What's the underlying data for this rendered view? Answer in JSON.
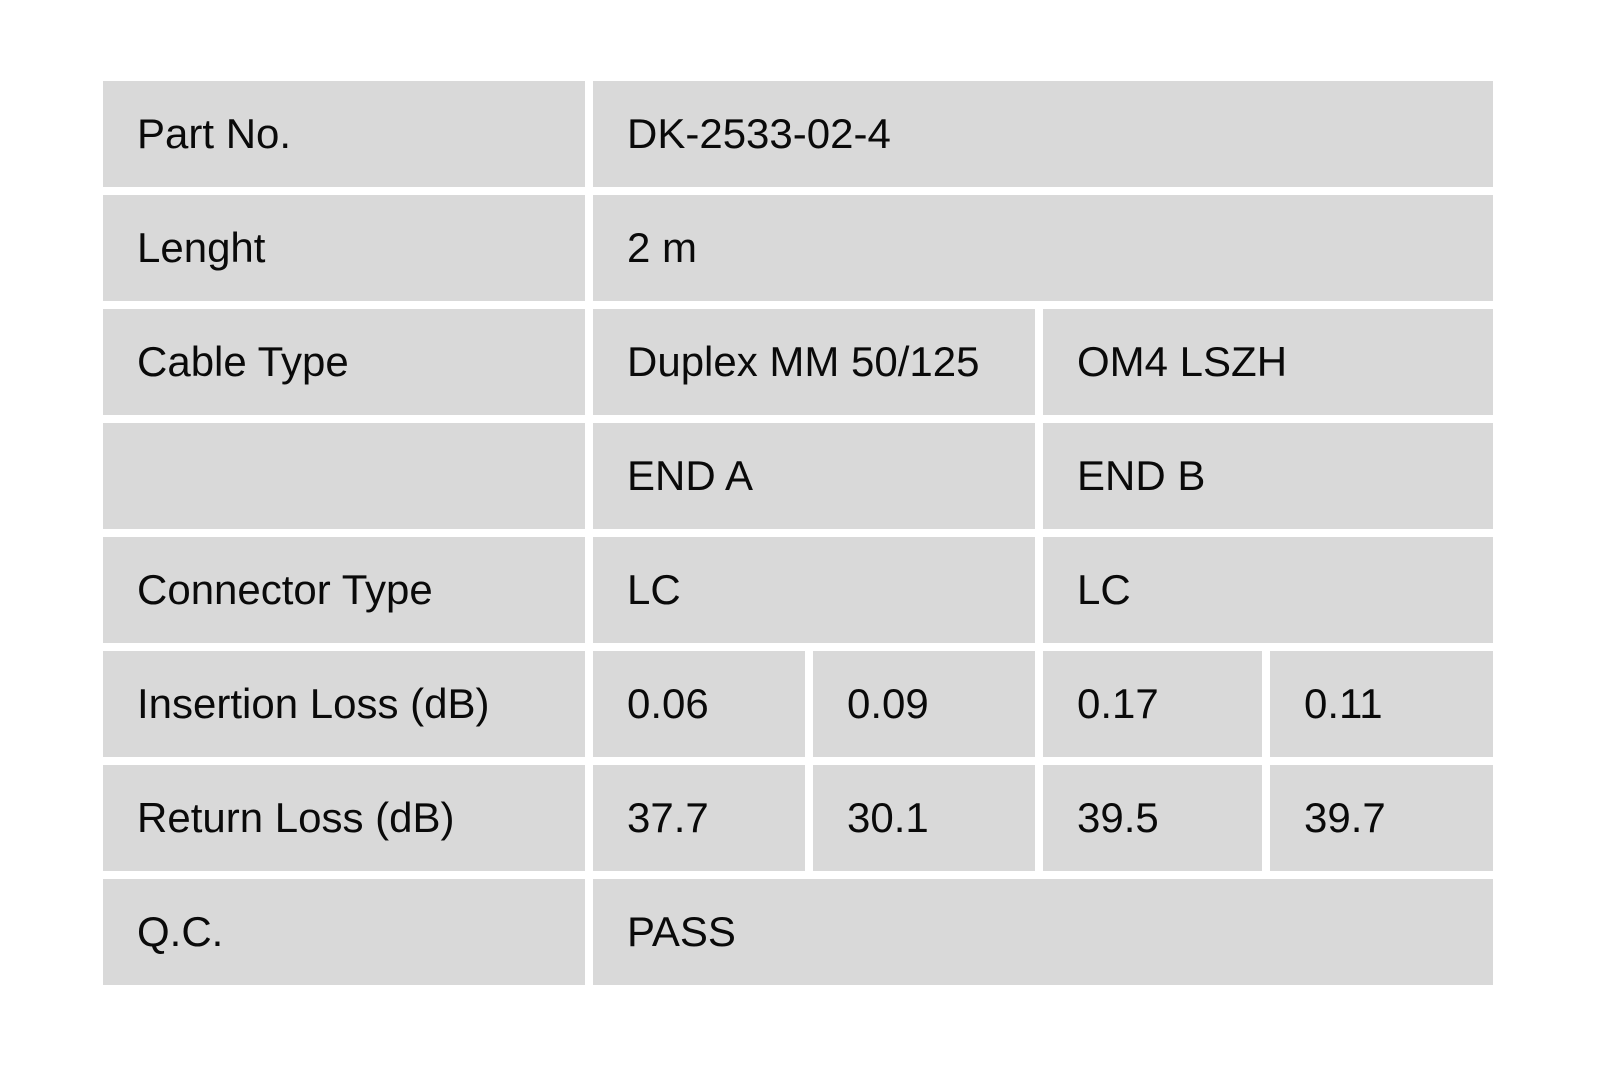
{
  "colors": {
    "cell_bg": "#d9d9d9",
    "page_bg": "#ffffff",
    "text": "#000000"
  },
  "table": {
    "rows": [
      {
        "label": "Part No.",
        "value": "DK-2533-02-4"
      },
      {
        "label": "Lenght",
        "value": "2 m"
      },
      {
        "label": "Cable Type",
        "end_a": "Duplex MM 50/125",
        "end_b": "OM4 LSZH"
      },
      {
        "label": "",
        "end_a": "END A",
        "end_b": "END B"
      },
      {
        "label": "Connector Type",
        "end_a": "LC",
        "end_b": "LC"
      },
      {
        "label": "Insertion Loss (dB)",
        "values": [
          "0.06",
          "0.09",
          "0.17",
          "0.11"
        ]
      },
      {
        "label": "Return Loss (dB)",
        "values": [
          "37.7",
          "30.1",
          "39.5",
          "39.7"
        ]
      },
      {
        "label": "Q.C.",
        "value": "PASS"
      }
    ]
  }
}
